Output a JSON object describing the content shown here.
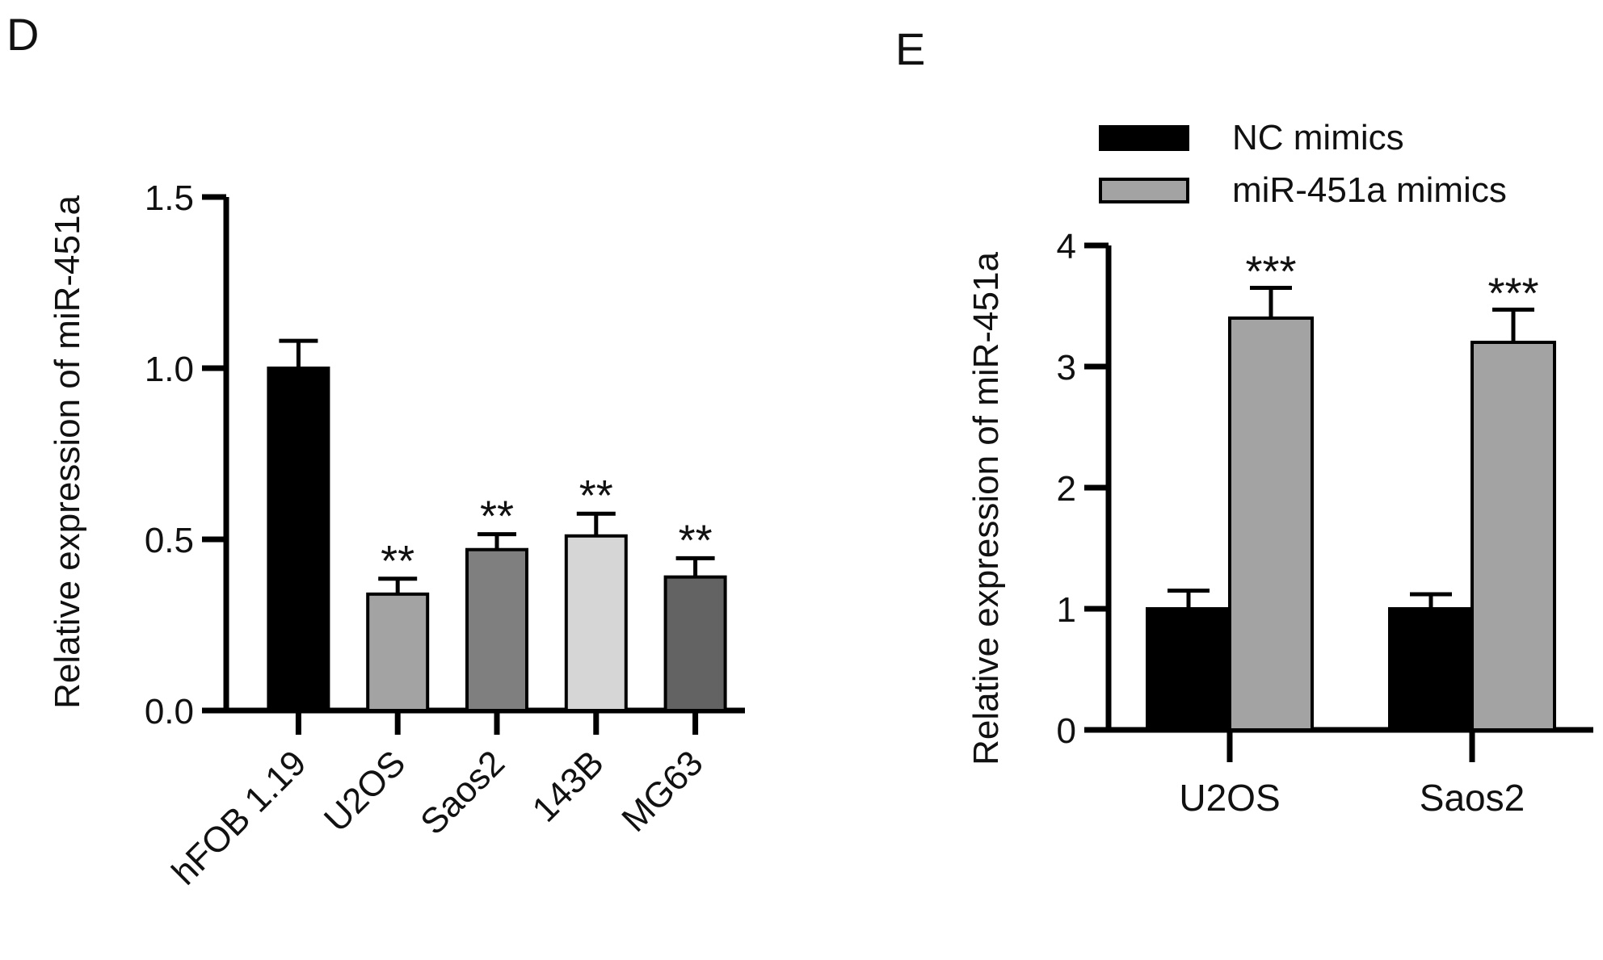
{
  "panels": [
    {
      "letter": "D"
    },
    {
      "letter": "E"
    }
  ],
  "chart_data": [
    {
      "type": "bar",
      "panel": "D",
      "title": "",
      "xlabel": "",
      "ylabel": "Relative expression of miR-451a",
      "ylim": [
        0,
        1.5
      ],
      "yticks": [
        "0.0",
        "0.5",
        "1.0",
        "1.5"
      ],
      "categories": [
        "hFOB 1.19",
        "U2OS",
        "Saos2",
        "143B",
        "MG63"
      ],
      "values": [
        1.0,
        0.34,
        0.47,
        0.51,
        0.39
      ],
      "errors": [
        0.08,
        0.045,
        0.045,
        0.065,
        0.055
      ],
      "annotations": [
        "",
        "**",
        "**",
        "**",
        "**"
      ],
      "colors": [
        "#000000",
        "#a3a3a3",
        "#7f7f7f",
        "#d6d6d6",
        "#636363"
      ],
      "grid": false
    },
    {
      "type": "bar",
      "panel": "E",
      "title": "",
      "xlabel": "",
      "ylabel": "Relative expression of miR-451a",
      "ylim": [
        0,
        4
      ],
      "yticks": [
        "0",
        "1",
        "2",
        "3",
        "4"
      ],
      "categories": [
        "U2OS",
        "Saos2"
      ],
      "series": [
        {
          "name": "NC mimics",
          "values": [
            1.0,
            1.0
          ],
          "errors": [
            0.15,
            0.12
          ],
          "annotations": [
            "",
            ""
          ],
          "color": "#000000"
        },
        {
          "name": "miR-451a mimics",
          "values": [
            3.4,
            3.2
          ],
          "errors": [
            0.25,
            0.27
          ],
          "annotations": [
            "***",
            "***"
          ],
          "color": "#a3a3a3"
        }
      ],
      "legend": "top-right",
      "grid": false
    }
  ]
}
